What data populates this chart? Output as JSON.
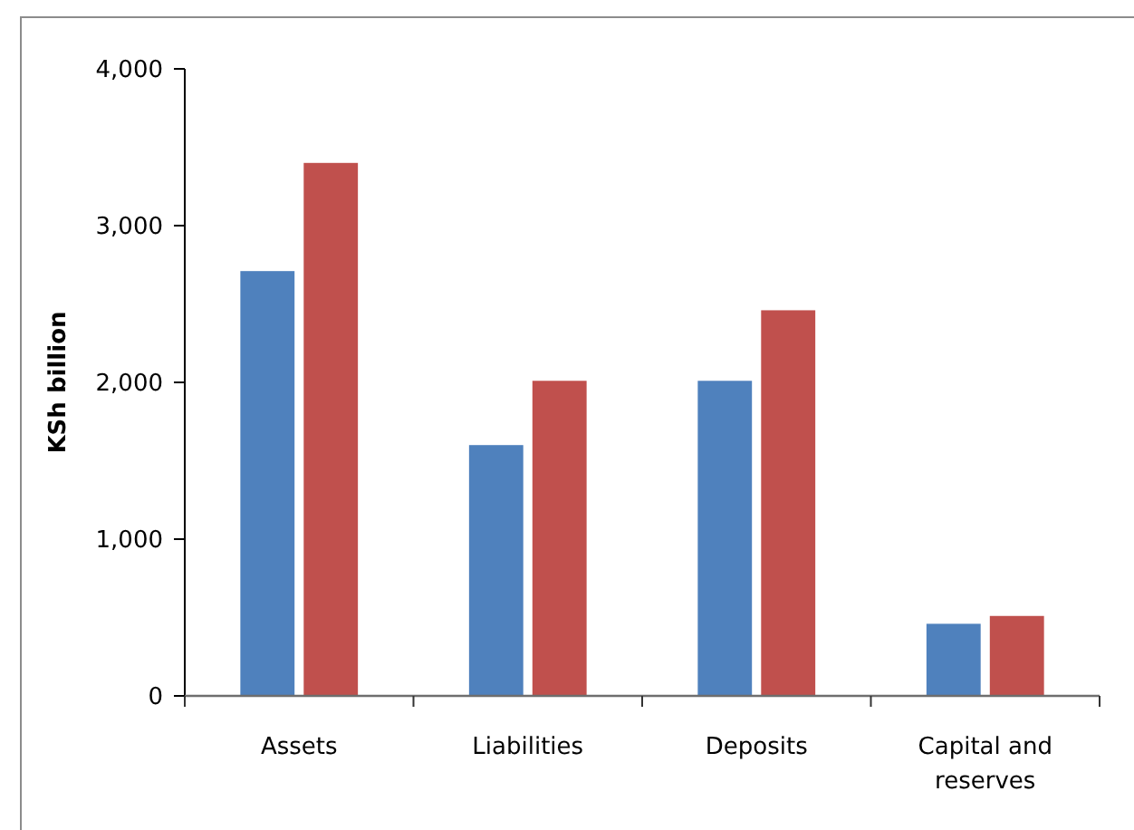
{
  "chart_data": {
    "type": "bar",
    "categories": [
      "Assets",
      "Liabilities",
      "Deposits",
      "Capital and reserves"
    ],
    "series": [
      {
        "color": "#4f81bd",
        "values": [
          2710,
          1600,
          2010,
          460
        ]
      },
      {
        "color": "#c0504d",
        "values": [
          3400,
          2010,
          2460,
          510
        ]
      }
    ],
    "ylabel": "KSh billion",
    "ylim": [
      0,
      4000
    ],
    "yticks": [
      0,
      {
        "value": 1000,
        "label": "1,000"
      },
      {
        "value": 2000,
        "label": "2,000"
      },
      {
        "value": 3000,
        "label": "3,000"
      },
      {
        "value": 4000,
        "label": "4,000"
      }
    ]
  }
}
